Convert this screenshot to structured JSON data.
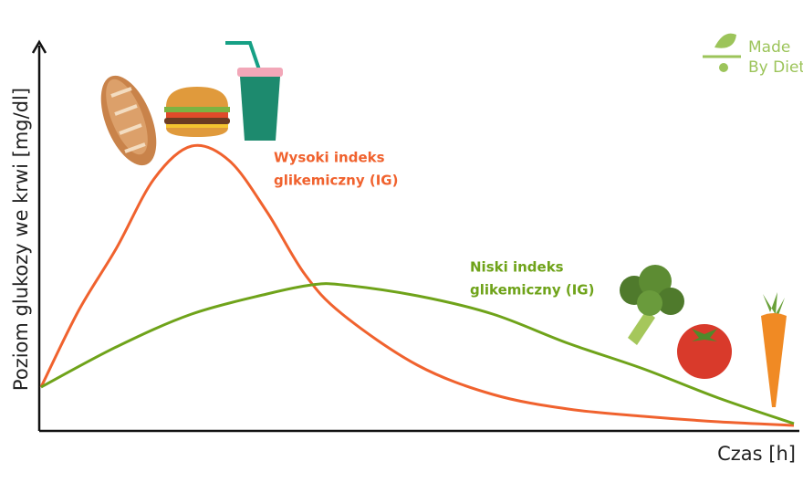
{
  "chart_data": {
    "type": "line",
    "y_label": "Poziom glukozy we krwi [mg/dl]",
    "x_label": "Czas [h]",
    "xlim": [
      0,
      10
    ],
    "ylim": [
      0,
      106
    ],
    "series": [
      {
        "color": "#f0622e",
        "x": [
          0,
          0.5,
          1,
          1.5,
          2,
          2.5,
          3,
          3.5,
          4,
          5,
          6,
          7,
          8,
          9,
          10
        ],
        "values": [
          12,
          33,
          50,
          69,
          78,
          74,
          60,
          43,
          32,
          18,
          10,
          6,
          4,
          2.5,
          1.5
        ]
      },
      {
        "color": "#6fa31a",
        "x": [
          0,
          1,
          2,
          3,
          3.6,
          4,
          5,
          6,
          7,
          8,
          9,
          10
        ],
        "values": [
          12,
          23,
          32,
          37.5,
          40,
          40,
          37,
          32,
          24,
          17,
          9,
          2
        ]
      }
    ],
    "annotations": [
      {
        "lines": [
          "Wysoki indeks",
          "glikemiczny (IG)"
        ],
        "color": "#f0622e"
      },
      {
        "lines": [
          "Niski indeks",
          "glikemiczny (IG)"
        ],
        "color": "#6fa31a"
      }
    ],
    "logo": [
      "Made",
      "By Diet"
    ]
  }
}
